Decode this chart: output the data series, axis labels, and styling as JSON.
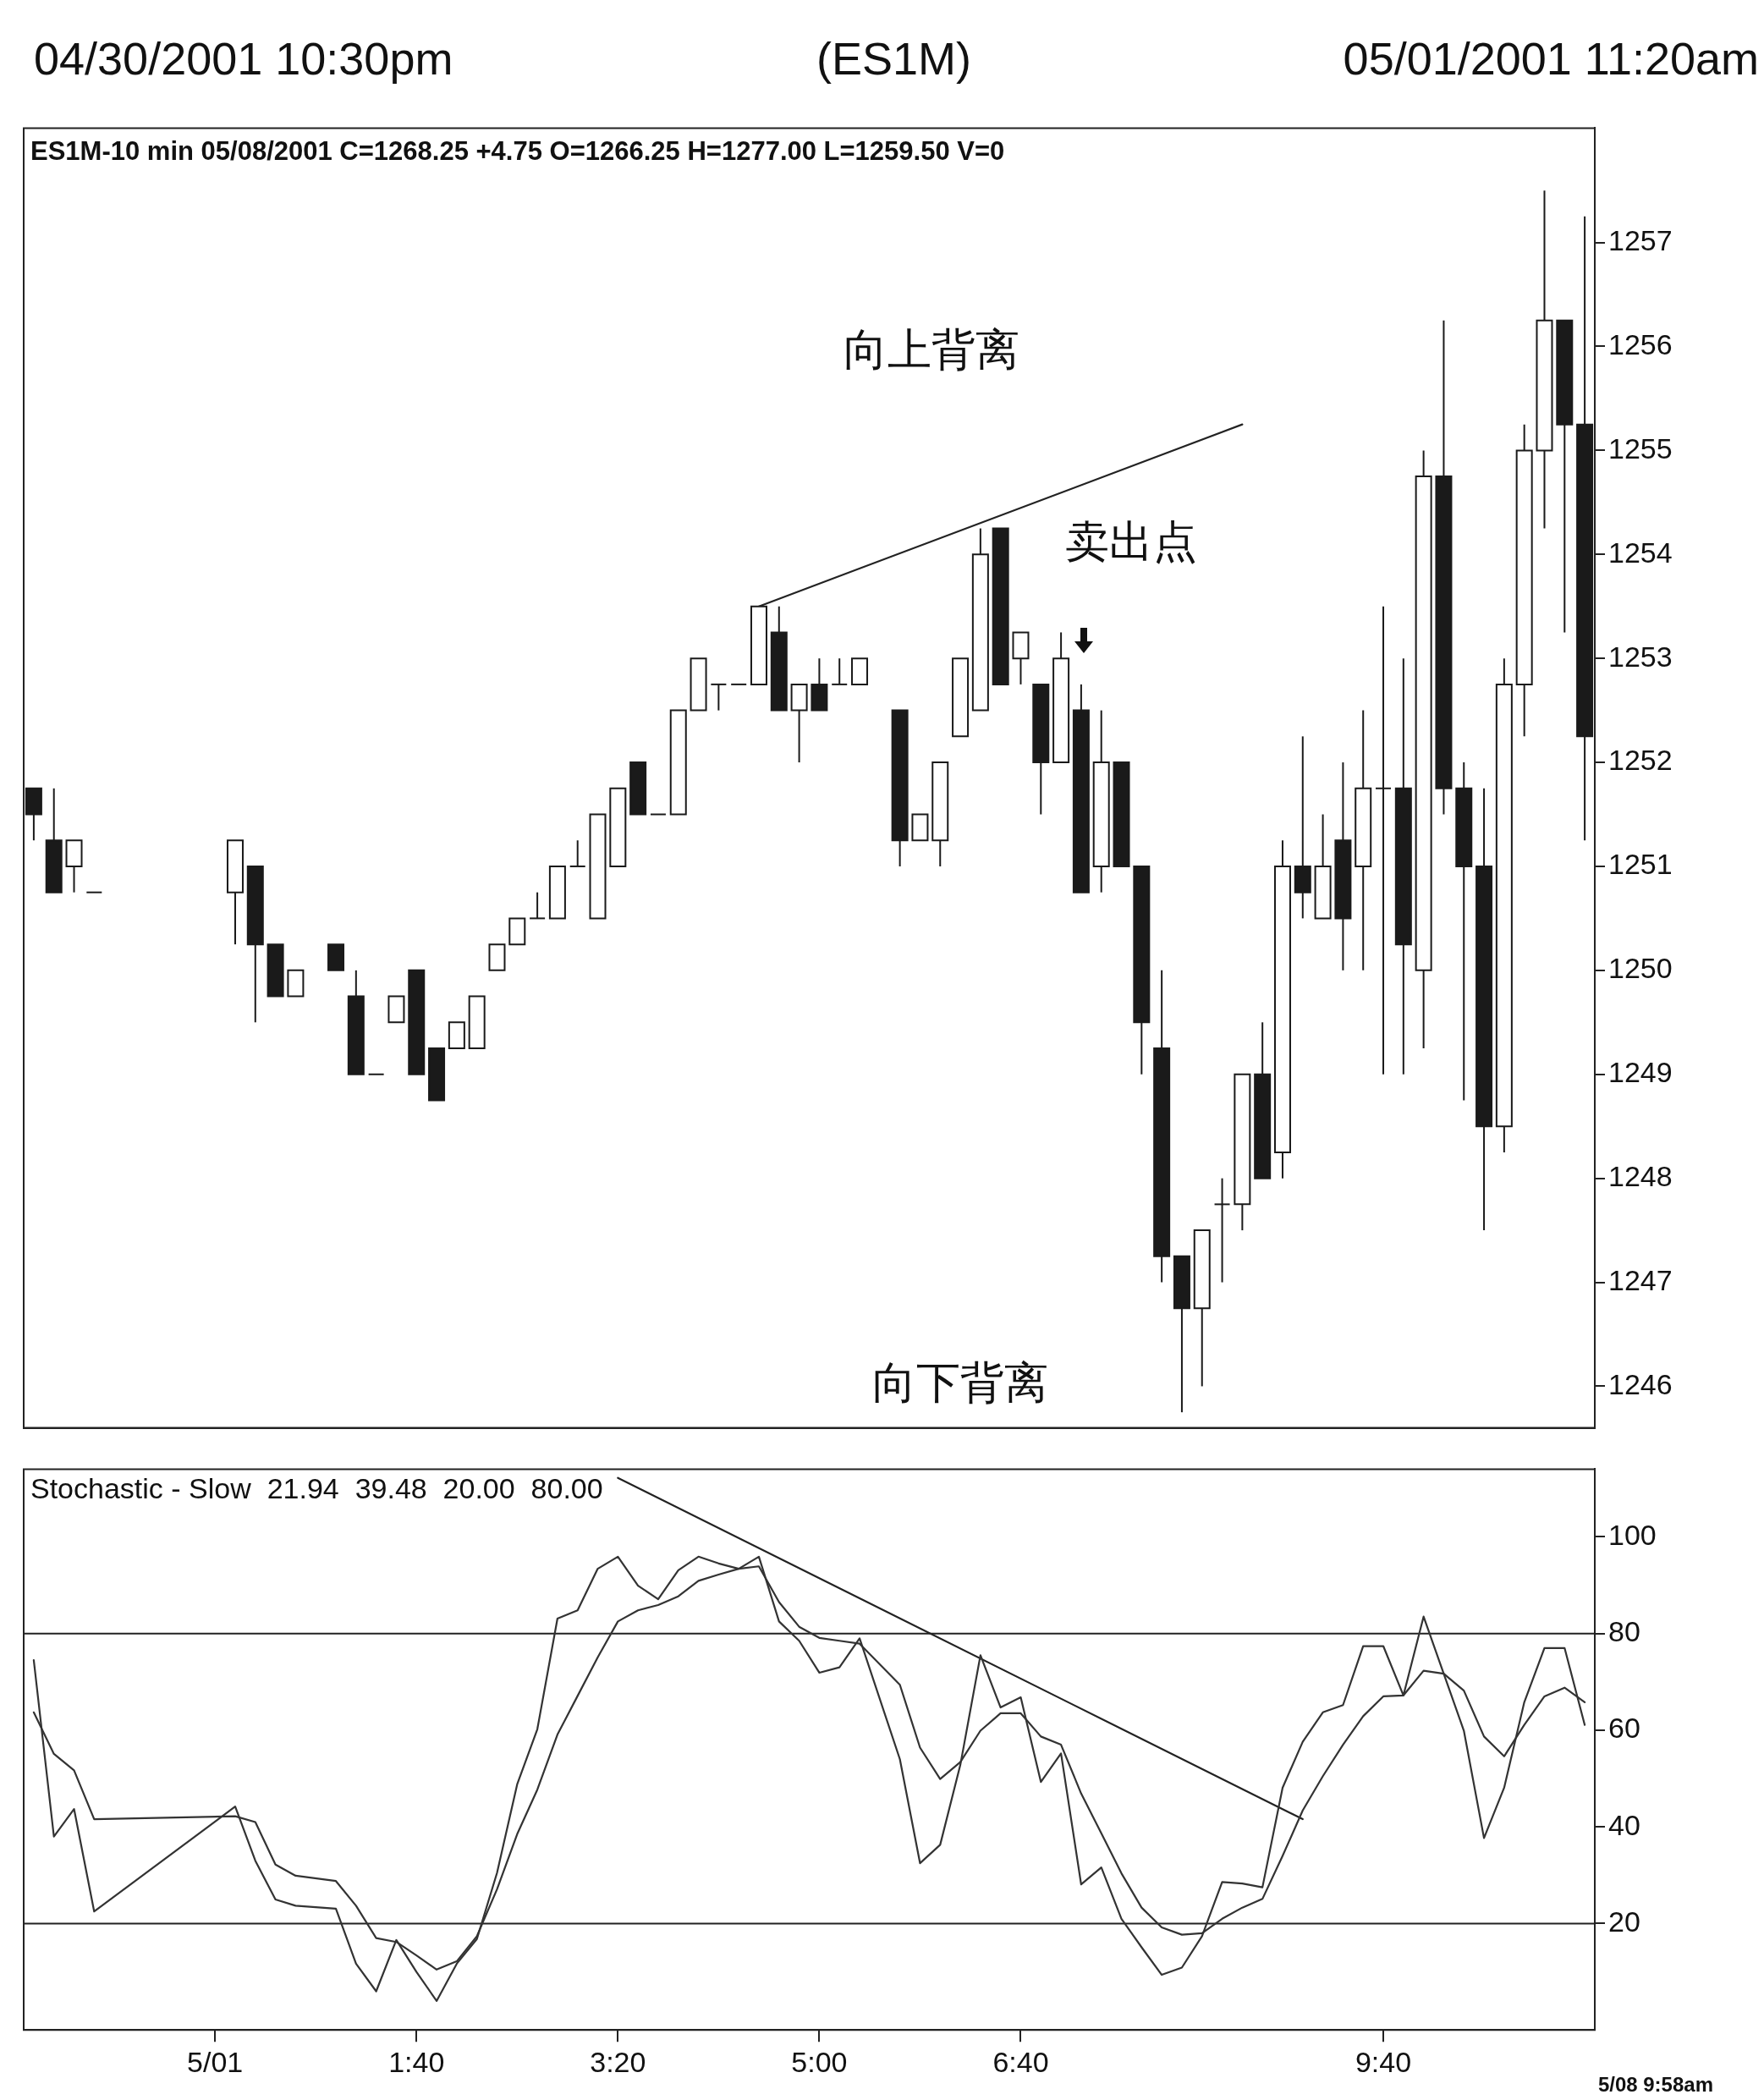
{
  "chart_data": [
    {
      "type": "candlestick",
      "title": "(ES1M)",
      "subtitle": "ES1M-10 min  05/08/2001  C=1268.25  +4.75  O=1266.25  H=1277.00  L=1259.50  V=0",
      "annotations": [
        "04/30/2001 10:30pm",
        "05/01/2001 11:20am",
        "向上背离",
        "卖出点",
        "向下背离"
      ],
      "categories": [
        null,
        null,
        null,
        null,
        null,
        null,
        null,
        null,
        null,
        null,
        null,
        null,
        null,
        null,
        null,
        null,
        null,
        null,
        null,
        null,
        null,
        null,
        null,
        null,
        null,
        null,
        null,
        null,
        null,
        null,
        null,
        null,
        null,
        null,
        null,
        null,
        null,
        null,
        null,
        null,
        null,
        null,
        null,
        null,
        null,
        null,
        null,
        null,
        null,
        null,
        null,
        null,
        null,
        null,
        null,
        null,
        null,
        null,
        null,
        null,
        null,
        null,
        null,
        null,
        null,
        null,
        null,
        null,
        null,
        null,
        null,
        null,
        null,
        null,
        null,
        null,
        null,
        null
      ],
      "ohlc": [
        [
          1251.75,
          1251.75,
          1251.25,
          1251.5
        ],
        [
          1251.25,
          1251.75,
          1250.75,
          1250.75
        ],
        [
          1251,
          1251.25,
          1250.75,
          1251.25
        ],
        [
          1250.75,
          1250.75,
          1250.75,
          1250.75
        ],
        null,
        null,
        null,
        null,
        null,
        null,
        [
          1250.75,
          1251.25,
          1250.25,
          1251.25
        ],
        [
          1251,
          1251,
          1249.5,
          1250.25
        ],
        [
          1250.25,
          1250.25,
          1249.75,
          1249.75
        ],
        [
          1249.75,
          1250,
          1249.75,
          1250
        ],
        null,
        [
          1250.25,
          1250.25,
          1250,
          1250
        ],
        [
          1249.75,
          1250,
          1249,
          1249
        ],
        [
          1249,
          1249,
          1249,
          1249
        ],
        [
          1249.5,
          1249.75,
          1249.5,
          1249.75
        ],
        [
          1250,
          1250,
          1249,
          1249
        ],
        [
          1249.25,
          1249.25,
          1248.75,
          1248.75
        ],
        [
          1249.25,
          1249.5,
          1249.25,
          1249.5
        ],
        [
          1249.25,
          1249.75,
          1249.25,
          1249.75
        ],
        [
          1250,
          1250.25,
          1250,
          1250.25
        ],
        [
          1250.25,
          1250.5,
          1250.25,
          1250.5
        ],
        [
          1250.5,
          1250.75,
          1250.5,
          1250.5
        ],
        [
          1250.5,
          1251,
          1250.5,
          1251
        ],
        [
          1251,
          1251.25,
          1251,
          1251
        ],
        [
          1250.5,
          1251.5,
          1250.5,
          1251.5
        ],
        [
          1251,
          1251.75,
          1251,
          1251.75
        ],
        [
          1252,
          1252,
          1251.5,
          1251.5
        ],
        [
          1251.5,
          1251.5,
          1251.5,
          1251.5
        ],
        [
          1251.5,
          1252.5,
          1251.5,
          1252.5
        ],
        [
          1252.5,
          1253,
          1252.5,
          1253
        ],
        [
          1252.75,
          1252.75,
          1252.5,
          1252.75
        ],
        [
          1252.75,
          1252.75,
          1252.75,
          1252.75
        ],
        [
          1252.75,
          1253.5,
          1252.75,
          1253.5
        ],
        [
          1253.25,
          1253.5,
          1252.5,
          1252.5
        ],
        [
          1252.5,
          1252.75,
          1252,
          1252.75
        ],
        [
          1252.75,
          1253,
          1252.5,
          1252.5
        ],
        [
          1252.75,
          1253,
          1252.75,
          1252.75
        ],
        [
          1252.75,
          1253,
          1252.75,
          1253
        ],
        null,
        [
          1252.5,
          1252.5,
          1251,
          1251.25
        ],
        [
          1251.25,
          1251.5,
          1251.25,
          1251.5
        ],
        [
          1251.25,
          1252,
          1251,
          1252
        ],
        [
          1252.25,
          1253,
          1252.25,
          1253
        ],
        [
          1252.5,
          1254.25,
          1252.5,
          1254
        ],
        [
          1254.25,
          1254.25,
          1252.75,
          1252.75
        ],
        [
          1253,
          1253.25,
          1252.75,
          1253.25
        ],
        [
          1252.75,
          1252.75,
          1251.5,
          1252
        ],
        [
          1252,
          1253.25,
          1252,
          1253
        ],
        [
          1252.5,
          1252.75,
          1250.75,
          1250.75
        ],
        [
          1251,
          1252.5,
          1250.75,
          1252
        ],
        [
          1252,
          1252,
          1251,
          1251
        ],
        [
          1251,
          1251,
          1249,
          1249.5
        ],
        [
          1249.25,
          1250,
          1247,
          1247.25
        ],
        [
          1247.25,
          1247.25,
          1245.75,
          1246.75
        ],
        [
          1246.75,
          1247.5,
          1246,
          1247.5
        ],
        [
          1247.75,
          1248,
          1247,
          1247.75
        ],
        [
          1247.75,
          1249,
          1247.5,
          1249
        ],
        [
          1249,
          1249.5,
          1248,
          1248
        ],
        [
          1248.25,
          1251.25,
          1248,
          1251
        ],
        [
          1251,
          1252.25,
          1250.5,
          1250.75
        ],
        [
          1250.5,
          1251.5,
          1250.5,
          1251
        ],
        [
          1251.25,
          1252,
          1250,
          1250.5
        ],
        [
          1251,
          1252.5,
          1250,
          1251.75
        ],
        [
          1251.75,
          1253.5,
          1249,
          1251.75
        ],
        [
          1251.75,
          1253,
          1249,
          1250.25
        ],
        [
          1250,
          1255,
          1249.25,
          1254.75
        ],
        [
          1254.75,
          1256.25,
          1251.5,
          1251.75
        ],
        [
          1251.75,
          1252,
          1248.75,
          1251
        ],
        [
          1251,
          1251.75,
          1247.5,
          1248.5
        ],
        [
          1248.5,
          1253,
          1248.25,
          1252.75
        ],
        [
          1252.75,
          1255.25,
          1252.25,
          1255
        ],
        [
          1255,
          1257.5,
          1254.25,
          1256.25
        ],
        [
          1256.25,
          1256.25,
          1253.25,
          1255.25
        ],
        [
          1255.25,
          1257.25,
          1251.25,
          1252.25
        ]
      ],
      "series": [
        {
          "type": "line",
          "color": "#222222",
          "values": [
            null,
            null,
            null,
            null,
            null,
            null,
            null,
            null,
            null,
            null,
            null,
            null,
            null,
            null,
            null,
            null,
            null,
            null,
            null,
            null,
            null,
            null,
            null,
            null,
            null,
            null,
            null,
            null,
            null,
            null,
            null,
            null,
            null,
            null,
            null,
            null,
            1253.5,
            null,
            null,
            null,
            null,
            null,
            null,
            null,
            null,
            null,
            null,
            null,
            null,
            null,
            null,
            null,
            null,
            null,
            null,
            null,
            null,
            null,
            null,
            null,
            1255.25,
            null,
            null,
            null,
            null,
            null,
            null,
            null,
            null,
            null,
            null,
            null,
            null,
            null,
            null,
            null,
            null,
            null
          ]
        }
      ],
      "ylim": [
        1245.6,
        1258.1
      ],
      "yticks": [
        1246,
        1247,
        1248,
        1249,
        1250,
        1251,
        1252,
        1253,
        1254,
        1255,
        1256,
        1257
      ],
      "tick_labels": "y"
    },
    {
      "type": "line",
      "title": "Stochastic - Slow  21.94  39.48  20.00  80.00",
      "annotations": [
        "5/08  9:58am"
      ],
      "categories": [
        null,
        null,
        null,
        null,
        null,
        null,
        null,
        null,
        null,
        "5/01",
        null,
        null,
        null,
        null,
        null,
        null,
        null,
        null,
        null,
        "1:40",
        null,
        null,
        null,
        null,
        null,
        null,
        null,
        null,
        null,
        "3:20",
        null,
        null,
        null,
        null,
        null,
        null,
        null,
        null,
        null,
        "5:00",
        null,
        null,
        null,
        null,
        null,
        null,
        null,
        null,
        null,
        "6:40",
        null,
        null,
        null,
        null,
        null,
        null,
        null,
        null,
        null,
        null,
        null,
        null,
        null,
        null,
        null,
        null,
        null,
        "9:40",
        null,
        null,
        null,
        null,
        null,
        null,
        null,
        null,
        null,
        null
      ],
      "series": [
        {
          "color": "#333333",
          "values": [
            74.5,
            38,
            43.7,
            22.5,
            null,
            null,
            null,
            null,
            null,
            null,
            44.2,
            33,
            25,
            23.7,
            null,
            23.1,
            11.7,
            6,
            16.6,
            10,
            4,
            11.7,
            16.8,
            30.5,
            48.8,
            60.2,
            83.1,
            84.8,
            93.4,
            95.9,
            89.9,
            87.1,
            93.1,
            95.9,
            94.5,
            93.4,
            95.9,
            82.5,
            78.5,
            71.9,
            73,
            79,
            null,
            54,
            32.5,
            36.3,
            52.8,
            75.5,
            64.7,
            66.8,
            49.3,
            55.2,
            28.1,
            31.6,
            21,
            15.1,
            9.4,
            10.9,
            17.4,
            28.6,
            28.3,
            27.5,
            48.1,
            57.6,
            63.7,
            65.2,
            77.4,
            77.4,
            67.2,
            83.5,
            71.7,
            59.9,
            37.7,
            48.1,
            65.8,
            77,
            77,
            61.1
          ]
        },
        {
          "color": "#333333",
          "values": [
            63.7,
            55.1,
            51.7,
            41.6,
            null,
            null,
            null,
            null,
            null,
            null,
            42.2,
            41,
            32.2,
            29.9,
            null,
            28.8,
            23.7,
            17,
            16.2,
            13.4,
            10.5,
            12.2,
            17.4,
            27.1,
            38.5,
            47.7,
            59.1,
            67.1,
            75.1,
            82.5,
            84.8,
            85.9,
            87.7,
            90.9,
            92.2,
            93.4,
            93.9,
            86.5,
            81.4,
            79.1,
            78.5,
            77.9,
            null,
            69.4,
            56.4,
            49.9,
            53.4,
            59.9,
            63.5,
            63.5,
            58.7,
            57,
            46.9,
            38.7,
            30.4,
            23.3,
            19.2,
            17.7,
            18,
            21,
            23.3,
            25.1,
            34,
            43.4,
            50.5,
            57,
            62.9,
            67,
            67.2,
            72.3,
            71.7,
            68.2,
            58.7,
            54.6,
            61.1,
            67,
            68.8,
            65.8
          ]
        },
        {
          "type": "line",
          "color": "#222222",
          "values": [
            null,
            null,
            null,
            null,
            null,
            null,
            null,
            null,
            null,
            null,
            null,
            null,
            null,
            null,
            null,
            null,
            null,
            null,
            null,
            null,
            null,
            null,
            null,
            null,
            null,
            null,
            null,
            null,
            null,
            112.2,
            null,
            null,
            null,
            null,
            null,
            null,
            null,
            null,
            null,
            null,
            null,
            null,
            null,
            null,
            null,
            null,
            null,
            null,
            null,
            null,
            null,
            null,
            null,
            null,
            null,
            null,
            null,
            null,
            null,
            null,
            null,
            null,
            null,
            41.6,
            null,
            null,
            null,
            null,
            null,
            null,
            null,
            null,
            null,
            null,
            null,
            null,
            null,
            null
          ]
        }
      ],
      "ref_lines": [
        {
          "axis": "y",
          "value": 80
        },
        {
          "axis": "y",
          "value": 20
        }
      ],
      "ylim": [
        -2,
        114
      ],
      "yticks": [
        20,
        40,
        60,
        80,
        100
      ]
    }
  ]
}
